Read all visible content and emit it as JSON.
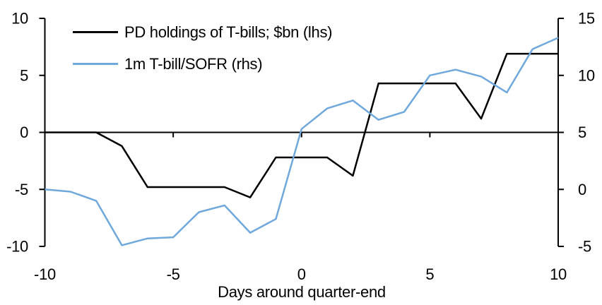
{
  "chart_data": {
    "type": "line",
    "title": "",
    "xlabel": "Days around quarter-end",
    "grid": false,
    "legend_position": "top-left",
    "x": [
      -10,
      -9,
      -8,
      -7,
      -6,
      -5,
      -4,
      -3,
      -2,
      -1,
      0,
      1,
      2,
      3,
      4,
      5,
      6,
      7,
      8,
      9,
      10
    ],
    "x_ticks": [
      -10,
      -5,
      0,
      5,
      10
    ],
    "left_axis": {
      "min": -10,
      "max": 10,
      "ticks": [
        10,
        5,
        0,
        -5,
        -10
      ]
    },
    "right_axis": {
      "min": -5,
      "max": 15,
      "ticks": [
        15,
        10,
        5,
        0,
        -5
      ]
    },
    "series": [
      {
        "name": "PD holdings of T-bills; $bn (lhs)",
        "axis": "lhs",
        "color": "#000000",
        "values": [
          0,
          0,
          0,
          -1.2,
          -4.8,
          -4.8,
          -4.8,
          -4.8,
          -5.7,
          -2.2,
          -2.2,
          -2.2,
          -3.8,
          4.3,
          4.3,
          4.3,
          4.3,
          1.2,
          6.9,
          6.9,
          6.9
        ]
      },
      {
        "name": "1m T-bill/SOFR (rhs)",
        "axis": "rhs",
        "color": "#6FA8DC",
        "values": [
          0,
          -0.2,
          -1.0,
          -4.9,
          -4.3,
          -4.2,
          -2.0,
          -1.4,
          -3.8,
          -2.6,
          5.3,
          7.1,
          7.8,
          6.1,
          6.8,
          10.0,
          10.5,
          9.9,
          8.5,
          12.3,
          13.3
        ]
      }
    ]
  }
}
